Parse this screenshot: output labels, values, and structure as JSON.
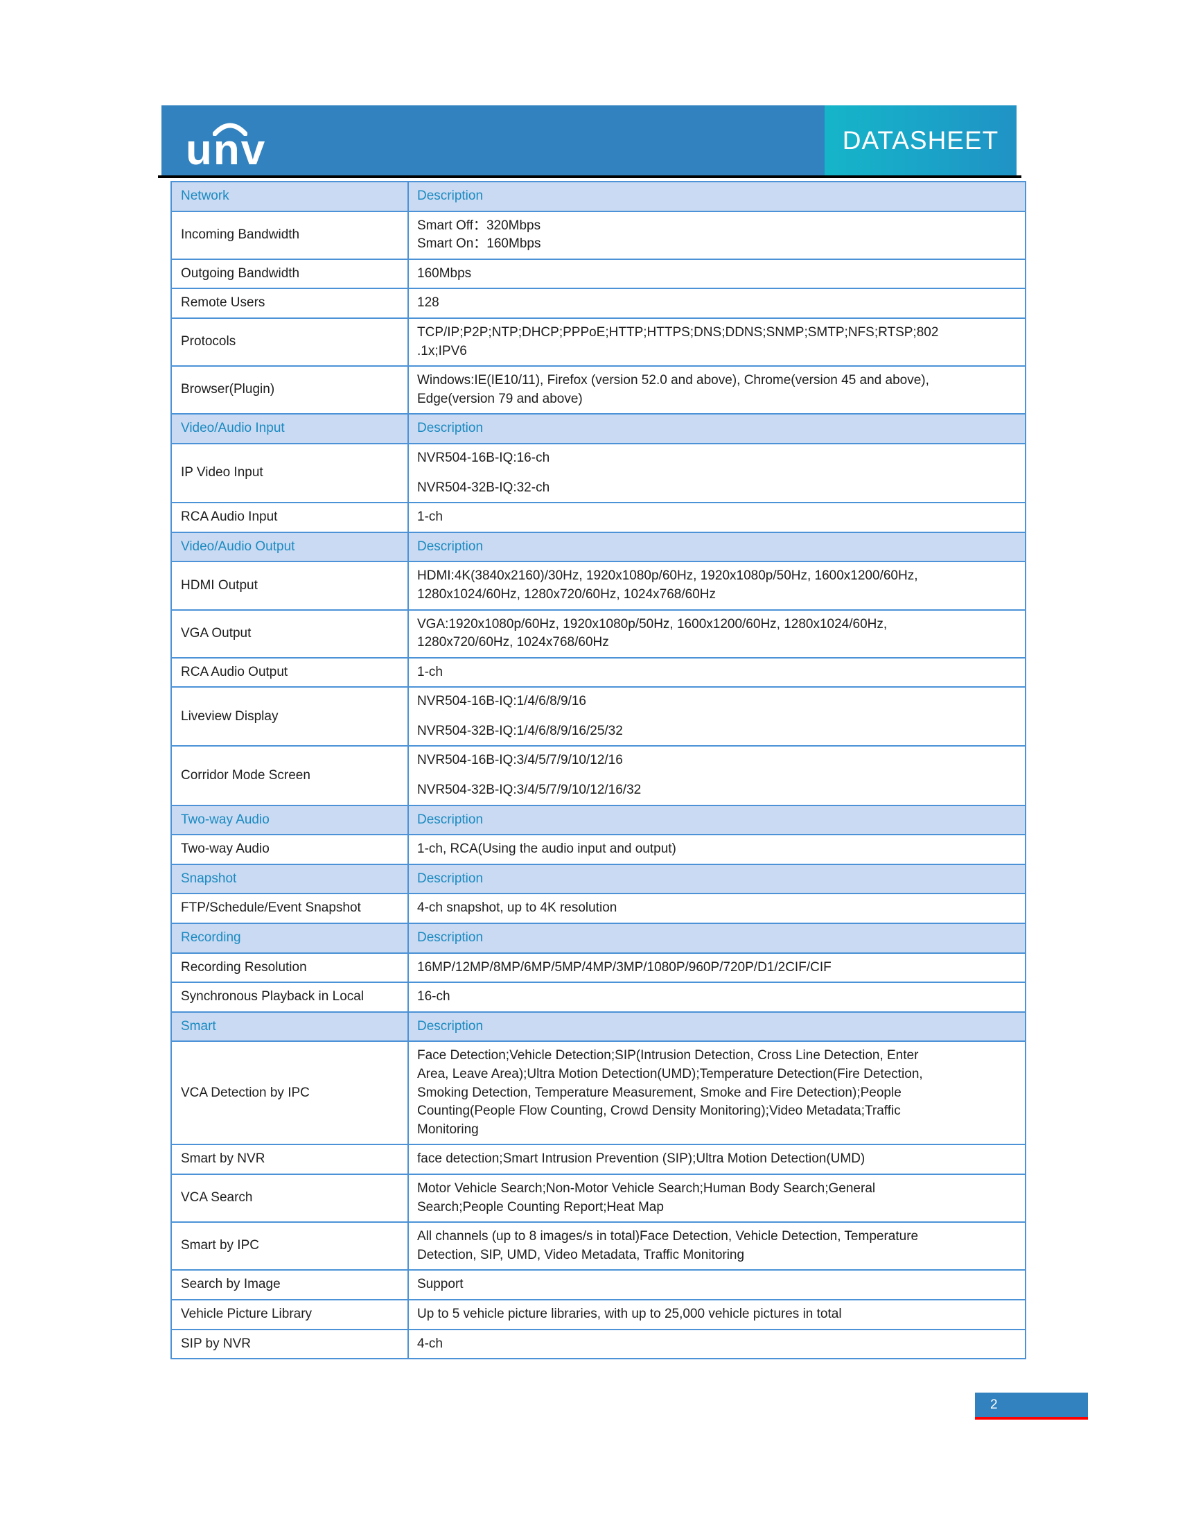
{
  "header": {
    "logo_text": "unv",
    "banner_label": "DATASHEET"
  },
  "colors": {
    "brand_blue": "#3182bf",
    "ribbon_teal_start": "#15b5c9",
    "ribbon_teal_end": "#2092c5",
    "table_border": "#4b92d6",
    "section_header_bg": "#c9daf2",
    "section_header_text": "#1b8ac1",
    "body_text": "#1d1d1d",
    "footer_red": "#ff0000",
    "rule_black": "#000000"
  },
  "table": {
    "description_header": "Description",
    "sections": [
      {
        "label": "Network",
        "description": "Description",
        "rows": [
          {
            "label": "Incoming Bandwidth",
            "lines": [
              "Smart Off：320Mbps",
              "Smart On：160Mbps"
            ],
            "spaced": false
          },
          {
            "label": "Outgoing Bandwidth",
            "lines": [
              "160Mbps"
            ],
            "spaced": false
          },
          {
            "label": "Remote Users",
            "lines": [
              "128"
            ],
            "spaced": false
          },
          {
            "label": "Protocols",
            "lines": [
              "TCP/IP;P2P;NTP;DHCP;PPPoE;HTTP;HTTPS;DNS;DDNS;SNMP;SMTP;NFS;RTSP;802",
              ".1x;IPV6"
            ],
            "spaced": false
          },
          {
            "label": "Browser(Plugin)",
            "lines": [
              "Windows:IE(IE10/11), Firefox (version 52.0 and above), Chrome(version 45 and above),",
              "Edge(version 79 and above)"
            ],
            "spaced": false
          }
        ]
      },
      {
        "label": "Video/Audio Input",
        "description": "Description",
        "rows": [
          {
            "label": "IP Video Input",
            "lines": [
              "NVR504-16B-IQ:16-ch",
              "NVR504-32B-IQ:32-ch"
            ],
            "spaced": true
          },
          {
            "label": "RCA Audio Input",
            "lines": [
              "1-ch"
            ],
            "spaced": false
          }
        ]
      },
      {
        "label": "Video/Audio Output",
        "description": "Description",
        "rows": [
          {
            "label": "HDMI Output",
            "lines": [
              "HDMI:4K(3840x2160)/30Hz, 1920x1080p/60Hz, 1920x1080p/50Hz, 1600x1200/60Hz,",
              "1280x1024/60Hz, 1280x720/60Hz, 1024x768/60Hz"
            ],
            "spaced": false
          },
          {
            "label": "VGA Output",
            "lines": [
              "VGA:1920x1080p/60Hz, 1920x1080p/50Hz, 1600x1200/60Hz, 1280x1024/60Hz,",
              "1280x720/60Hz, 1024x768/60Hz"
            ],
            "spaced": false
          },
          {
            "label": "RCA Audio Output",
            "lines": [
              "1-ch"
            ],
            "spaced": false
          },
          {
            "label": "Liveview Display",
            "lines": [
              "NVR504-16B-IQ:1/4/6/8/9/16",
              "NVR504-32B-IQ:1/4/6/8/9/16/25/32"
            ],
            "spaced": true
          },
          {
            "label": "Corridor Mode Screen",
            "lines": [
              "NVR504-16B-IQ:3/4/5/7/9/10/12/16",
              "NVR504-32B-IQ:3/4/5/7/9/10/12/16/32"
            ],
            "spaced": true
          }
        ]
      },
      {
        "label": "Two-way Audio",
        "description": "Description",
        "rows": [
          {
            "label": "Two-way Audio",
            "lines": [
              "1-ch, RCA(Using the audio input and output)"
            ],
            "spaced": false
          }
        ]
      },
      {
        "label": "Snapshot",
        "description": "Description",
        "rows": [
          {
            "label": "FTP/Schedule/Event Snapshot",
            "lines": [
              "4-ch snapshot, up to 4K resolution"
            ],
            "spaced": false
          }
        ]
      },
      {
        "label": "Recording",
        "description": "Description",
        "rows": [
          {
            "label": "Recording Resolution",
            "lines": [
              "16MP/12MP/8MP/6MP/5MP/4MP/3MP/1080P/960P/720P/D1/2CIF/CIF"
            ],
            "spaced": false
          },
          {
            "label": "Synchronous Playback in Local",
            "lines": [
              "16-ch"
            ],
            "spaced": false
          }
        ]
      },
      {
        "label": "Smart",
        "description": "Description",
        "rows": [
          {
            "label": "VCA Detection by IPC",
            "lines": [
              "Face Detection;Vehicle Detection;SIP(Intrusion Detection, Cross Line Detection, Enter",
              "Area, Leave Area);Ultra Motion Detection(UMD);Temperature Detection(Fire Detection,",
              "Smoking Detection, Temperature Measurement, Smoke and Fire Detection);People",
              "Counting(People Flow Counting, Crowd Density Monitoring);Video Metadata;Traffic",
              "Monitoring"
            ],
            "spaced": false
          },
          {
            "label": "Smart by NVR",
            "lines": [
              "face detection;Smart Intrusion Prevention (SIP);Ultra Motion Detection(UMD)"
            ],
            "spaced": false
          },
          {
            "label": "VCA Search",
            "lines": [
              "Motor Vehicle Search;Non-Motor Vehicle Search;Human Body Search;General",
              "Search;People Counting Report;Heat Map"
            ],
            "spaced": false
          },
          {
            "label": "Smart by IPC",
            "lines": [
              "All channels (up to 8 images/s in total)Face Detection, Vehicle Detection, Temperature",
              "Detection, SIP, UMD, Video Metadata, Traffic Monitoring"
            ],
            "spaced": false
          },
          {
            "label": "Search by Image",
            "lines": [
              "Support"
            ],
            "spaced": false
          },
          {
            "label": "Vehicle Picture Library",
            "lines": [
              "Up to 5 vehicle picture libraries, with up to 25,000 vehicle pictures in total"
            ],
            "spaced": false
          },
          {
            "label": "SIP by NVR",
            "lines": [
              "4-ch"
            ],
            "spaced": false
          }
        ]
      }
    ]
  },
  "footer": {
    "page_number": "2"
  }
}
